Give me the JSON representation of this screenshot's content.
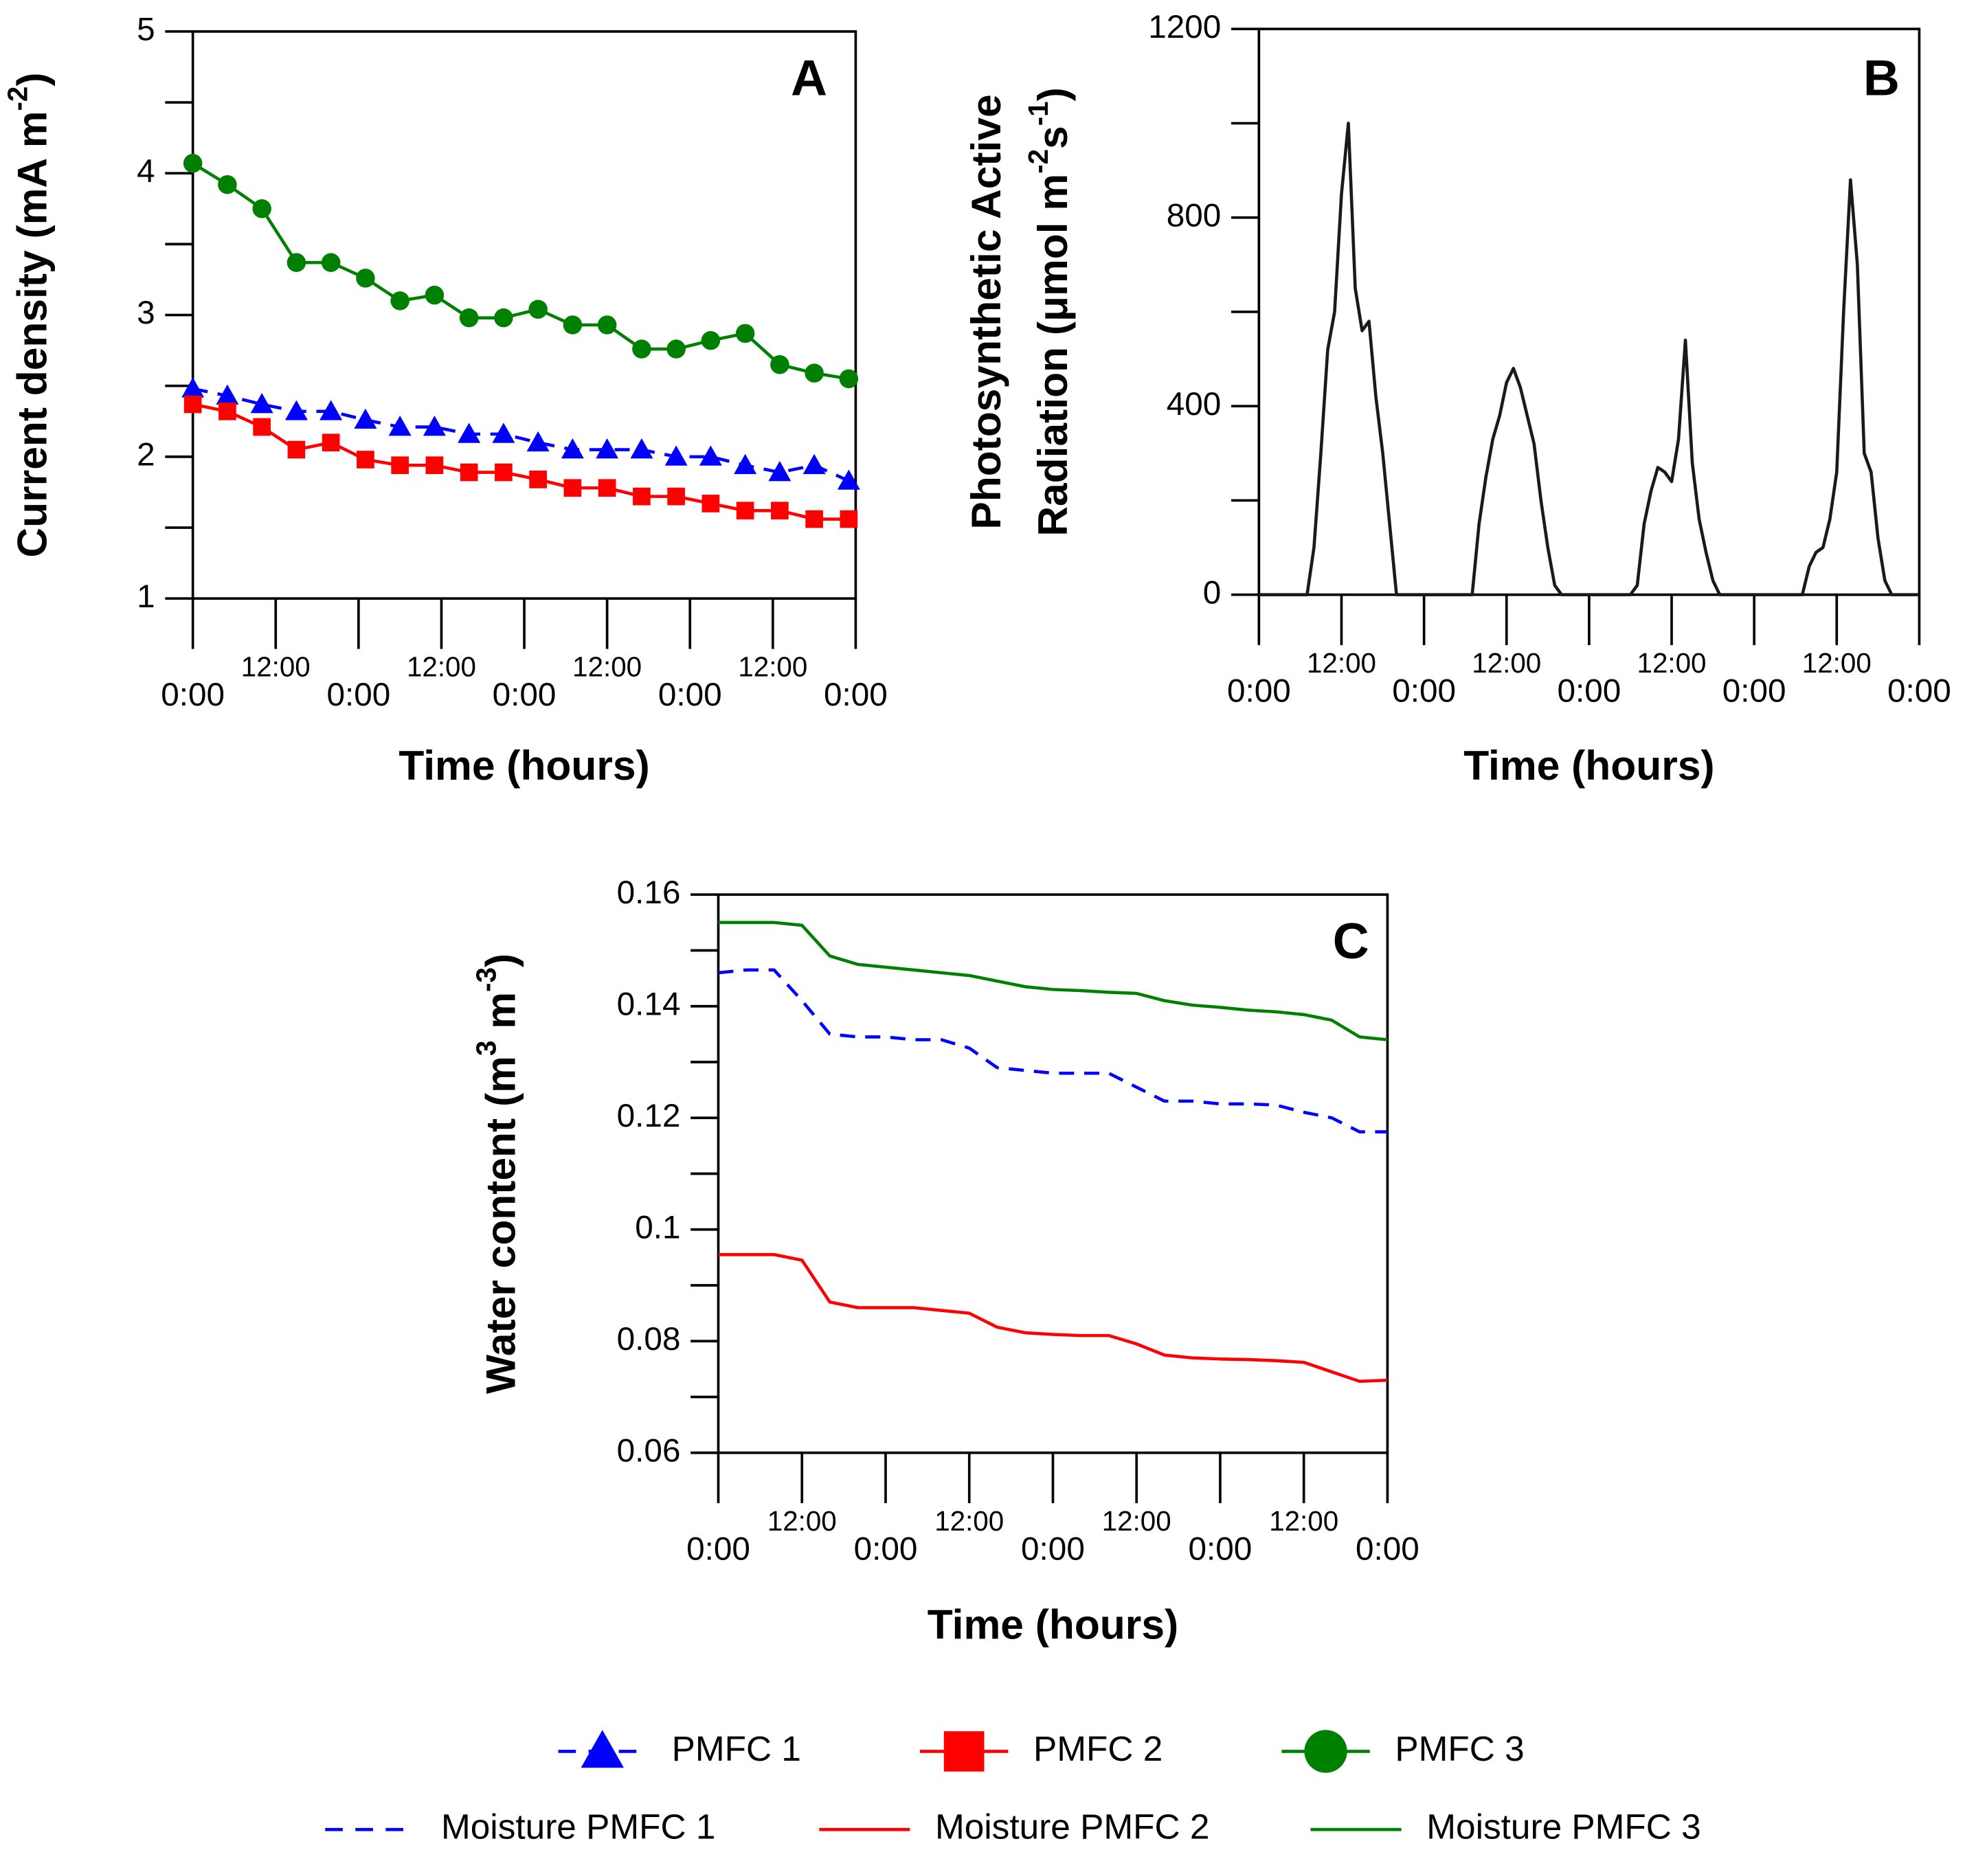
{
  "chart_data": [
    {
      "type": "line",
      "label": "A",
      "xlabel": "Time (hours)",
      "ylabel": [
        {
          "t": "Current density (mA m"
        },
        {
          "t": "-2",
          "sup": true
        },
        {
          "t": ")"
        }
      ],
      "x": [
        0,
        5,
        10,
        15,
        20,
        25,
        30,
        35,
        40,
        45,
        50,
        55,
        60,
        65,
        70,
        75,
        80,
        85,
        90,
        95
      ],
      "xlim": [
        0,
        96
      ],
      "xticks": [
        {
          "value": 0,
          "label": "0:00"
        },
        {
          "value": 12,
          "label": "12:00"
        },
        {
          "value": 24,
          "label": "0:00"
        },
        {
          "value": 36,
          "label": "12:00"
        },
        {
          "value": 48,
          "label": "0:00"
        },
        {
          "value": 60,
          "label": "12:00"
        },
        {
          "value": 72,
          "label": "0:00"
        },
        {
          "value": 84,
          "label": "12:00"
        },
        {
          "value": 96,
          "label": "0:00"
        }
      ],
      "ylim": [
        1,
        5
      ],
      "yticks": [
        1,
        2,
        3,
        4,
        5
      ],
      "yminor": [
        1.5,
        2.5,
        3.5,
        4.5
      ],
      "series": [
        {
          "name": "PMFC 1",
          "color": "#0000ff",
          "marker": "triangle",
          "dash": true,
          "values": [
            2.48,
            2.43,
            2.37,
            2.32,
            2.32,
            2.26,
            2.21,
            2.21,
            2.16,
            2.16,
            2.1,
            2.05,
            2.05,
            2.05,
            2.0,
            2.0,
            1.94,
            1.89,
            1.94,
            1.83
          ]
        },
        {
          "name": "PMFC 2",
          "color": "#ff0000",
          "marker": "square",
          "dash": false,
          "values": [
            2.37,
            2.32,
            2.21,
            2.05,
            2.1,
            1.98,
            1.94,
            1.94,
            1.89,
            1.89,
            1.84,
            1.78,
            1.78,
            1.72,
            1.72,
            1.67,
            1.62,
            1.62,
            1.56,
            1.56
          ]
        },
        {
          "name": "PMFC 3",
          "color": "#008000",
          "marker": "circle",
          "dash": false,
          "values": [
            4.07,
            3.92,
            3.75,
            3.37,
            3.37,
            3.26,
            3.1,
            3.14,
            2.98,
            2.98,
            3.04,
            2.93,
            2.93,
            2.76,
            2.76,
            2.82,
            2.87,
            2.65,
            2.59,
            2.55
          ]
        }
      ]
    },
    {
      "type": "line",
      "label": "B",
      "xlabel": "Time (hours)",
      "ylabel": [
        {
          "t": "Photosynthetic Active",
          "line": 1
        },
        {
          "t": "Radiation (μmol m",
          "line": 2
        },
        {
          "t": "-2",
          "sup": true,
          "line": 2
        },
        {
          "t": "s",
          "line": 2
        },
        {
          "t": "-1",
          "sup": true,
          "line": 2
        },
        {
          "t": ")",
          "line": 2
        }
      ],
      "x": [
        0,
        1,
        2,
        3,
        4,
        5,
        6,
        7,
        8,
        9,
        10,
        11,
        12,
        13,
        14,
        15,
        16,
        17,
        18,
        19,
        20,
        21,
        22,
        23,
        24,
        25,
        26,
        27,
        28,
        29,
        30,
        31,
        32,
        33,
        34,
        35,
        36,
        37,
        38,
        39,
        40,
        41,
        42,
        43,
        44,
        45,
        46,
        47,
        48,
        49,
        50,
        51,
        52,
        53,
        54,
        55,
        56,
        57,
        58,
        59,
        60,
        61,
        62,
        63,
        64,
        65,
        66,
        67,
        68,
        69,
        70,
        71,
        72,
        73,
        74,
        75,
        76,
        77,
        78,
        79,
        80,
        81,
        82,
        83,
        84,
        85,
        86,
        87,
        88,
        89,
        90,
        91,
        92,
        93,
        94,
        95,
        96
      ],
      "xlim": [
        0,
        96
      ],
      "xticks": [
        {
          "value": 0,
          "label": "0:00"
        },
        {
          "value": 12,
          "label": "12:00"
        },
        {
          "value": 24,
          "label": "0:00"
        },
        {
          "value": 36,
          "label": "12:00"
        },
        {
          "value": 48,
          "label": "0:00"
        },
        {
          "value": 60,
          "label": "12:00"
        },
        {
          "value": 72,
          "label": "0:00"
        },
        {
          "value": 84,
          "label": "12:00"
        },
        {
          "value": 96,
          "label": "0:00"
        }
      ],
      "ylim": [
        0,
        1200
      ],
      "yticks": [
        0,
        400,
        800,
        1200
      ],
      "yminor": [
        200,
        600,
        1000
      ],
      "series": [
        {
          "color": "#1a1a1a",
          "dash": false,
          "values": [
            0,
            0,
            0,
            0,
            0,
            0,
            0,
            0,
            100,
            300,
            520,
            600,
            850,
            1000,
            650,
            560,
            580,
            420,
            300,
            150,
            0,
            0,
            0,
            0,
            0,
            0,
            0,
            0,
            0,
            0,
            0,
            0,
            150,
            250,
            330,
            380,
            450,
            480,
            440,
            380,
            320,
            200,
            100,
            20,
            0,
            0,
            0,
            0,
            0,
            0,
            0,
            0,
            0,
            0,
            0,
            20,
            150,
            220,
            270,
            260,
            240,
            330,
            540,
            280,
            160,
            90,
            30,
            0,
            0,
            0,
            0,
            0,
            0,
            0,
            0,
            0,
            0,
            0,
            0,
            0,
            60,
            90,
            100,
            160,
            260,
            600,
            880,
            700,
            300,
            260,
            120,
            30,
            0,
            0,
            0,
            0,
            0
          ]
        }
      ]
    },
    {
      "type": "line",
      "label": "C",
      "xlabel": "Time (hours)",
      "ylabel": [
        {
          "t": "Water content (m"
        },
        {
          "t": "3",
          "sup": true
        },
        {
          "t": " m"
        },
        {
          "t": "-3",
          "sup": true
        },
        {
          "t": ")"
        }
      ],
      "x": [
        0,
        4,
        8,
        12,
        16,
        20,
        24,
        28,
        32,
        36,
        40,
        44,
        48,
        52,
        56,
        60,
        64,
        68,
        72,
        76,
        80,
        84,
        88,
        92,
        96
      ],
      "xlim": [
        0,
        96
      ],
      "xticks": [
        {
          "value": 0,
          "label": "0:00"
        },
        {
          "value": 12,
          "label": "12:00"
        },
        {
          "value": 24,
          "label": "0:00"
        },
        {
          "value": 36,
          "label": "12:00"
        },
        {
          "value": 48,
          "label": "0:00"
        },
        {
          "value": 60,
          "label": "12:00"
        },
        {
          "value": 72,
          "label": "0:00"
        },
        {
          "value": 84,
          "label": "12:00"
        },
        {
          "value": 96,
          "label": "0:00"
        }
      ],
      "ylim": [
        0.06,
        0.16
      ],
      "yticks": [
        0.06,
        0.08,
        0.1,
        0.12,
        0.14,
        0.16
      ],
      "yminor": [
        0.07,
        0.09,
        0.11,
        0.13,
        0.15
      ],
      "series": [
        {
          "name": "Moisture PMFC 1",
          "color": "#0000ff",
          "dash": true,
          "values": [
            0.146,
            0.1465,
            0.1465,
            0.141,
            0.135,
            0.1345,
            0.1345,
            0.134,
            0.134,
            0.1325,
            0.129,
            0.1285,
            0.128,
            0.128,
            0.128,
            0.1255,
            0.123,
            0.123,
            0.1225,
            0.1225,
            0.1223,
            0.121,
            0.12,
            0.1175,
            0.1175
          ]
        },
        {
          "name": "Moisture PMFC 2",
          "color": "#ff0000",
          "dash": false,
          "values": [
            0.0955,
            0.0955,
            0.0955,
            0.0945,
            0.087,
            0.086,
            0.086,
            0.086,
            0.0855,
            0.085,
            0.0825,
            0.0815,
            0.0812,
            0.081,
            0.081,
            0.0795,
            0.0775,
            0.077,
            0.0768,
            0.0767,
            0.0765,
            0.0762,
            0.0745,
            0.0728,
            0.073
          ]
        },
        {
          "name": "Moisture PMFC 3",
          "color": "#008000",
          "dash": false,
          "values": [
            0.155,
            0.155,
            0.155,
            0.1545,
            0.149,
            0.1475,
            0.147,
            0.1465,
            0.146,
            0.1455,
            0.1445,
            0.1435,
            0.143,
            0.1428,
            0.1425,
            0.1423,
            0.141,
            0.1402,
            0.1398,
            0.1393,
            0.139,
            0.1385,
            0.1375,
            0.1345,
            0.134
          ]
        }
      ]
    }
  ]
}
